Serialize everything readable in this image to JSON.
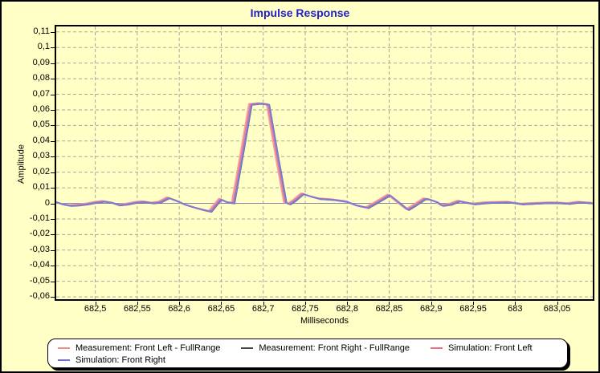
{
  "title": "Impulse Response",
  "colors": {
    "window_bg": "#FFFFC6",
    "title": "#2121C8",
    "grid": "#A9A79B",
    "zero_line": "#8A8AB4",
    "plot_border": "#000000"
  },
  "axes": {
    "x": {
      "label": "Milliseconds",
      "min": 682.4535,
      "max": 683.0925,
      "ticks": [
        {
          "value": 682.5,
          "label": "682,5"
        },
        {
          "value": 682.55,
          "label": "682,55"
        },
        {
          "value": 682.6,
          "label": "682,6"
        },
        {
          "value": 682.65,
          "label": "682,65"
        },
        {
          "value": 682.7,
          "label": "682,7"
        },
        {
          "value": 682.75,
          "label": "682,75"
        },
        {
          "value": 682.8,
          "label": "682,8"
        },
        {
          "value": 682.85,
          "label": "682,85"
        },
        {
          "value": 682.9,
          "label": "682,9"
        },
        {
          "value": 682.95,
          "label": "682,95"
        },
        {
          "value": 683.0,
          "label": "683"
        },
        {
          "value": 683.05,
          "label": "683,05"
        }
      ]
    },
    "y": {
      "label": "Amplitude",
      "min": -0.0615,
      "max": 0.1135,
      "ticks": [
        {
          "value": 0.11,
          "label": "0,11"
        },
        {
          "value": 0.1,
          "label": "0,1"
        },
        {
          "value": 0.09,
          "label": "0,09"
        },
        {
          "value": 0.08,
          "label": "0,08"
        },
        {
          "value": 0.07,
          "label": "0,07"
        },
        {
          "value": 0.06,
          "label": "0,06"
        },
        {
          "value": 0.05,
          "label": "0,05"
        },
        {
          "value": 0.04,
          "label": "0,04"
        },
        {
          "value": 0.03,
          "label": "0,03"
        },
        {
          "value": 0.02,
          "label": "0,02"
        },
        {
          "value": 0.01,
          "label": "0,01"
        },
        {
          "value": 0.0,
          "label": "0"
        },
        {
          "value": -0.01,
          "label": "-0,01"
        },
        {
          "value": -0.02,
          "label": "-0,02"
        },
        {
          "value": -0.03,
          "label": "-0,03"
        },
        {
          "value": -0.04,
          "label": "-0,04"
        },
        {
          "value": -0.05,
          "label": "-0,05"
        },
        {
          "value": -0.06,
          "label": "-0,06"
        }
      ]
    }
  },
  "chart_data": {
    "type": "line",
    "title": "Impulse Response",
    "xlabel": "Milliseconds",
    "ylabel": "Amplitude",
    "xlim": [
      682.4535,
      683.0925
    ],
    "ylim": [
      -0.0615,
      0.1135
    ],
    "grid": true,
    "legend_position": "bottom",
    "note": "Four nearly overlapping impulse-response traces; peak ~0.0639 at ~682.697 ms. Each series = base_samples with small time shift and amplitude offset.",
    "base_samples": [
      [
        682.4535,
        0.0008
      ],
      [
        682.461,
        -0.0006
      ],
      [
        682.471,
        -0.0016
      ],
      [
        682.481,
        -0.0013
      ],
      [
        682.491,
        -0.0006
      ],
      [
        682.501,
        0.0004
      ],
      [
        682.511,
        0.0011
      ],
      [
        682.521,
        0.0002
      ],
      [
        682.529,
        -0.0013
      ],
      [
        682.539,
        -0.0007
      ],
      [
        682.549,
        0.0004
      ],
      [
        682.559,
        0.0009
      ],
      [
        682.569,
        0.0
      ],
      [
        682.578,
        0.0006
      ],
      [
        682.588,
        0.0034
      ],
      [
        682.598,
        0.0014
      ],
      [
        682.608,
        -0.001
      ],
      [
        682.62,
        -0.003
      ],
      [
        682.63,
        -0.0044
      ],
      [
        682.638,
        -0.0054
      ],
      [
        682.65,
        0.0025
      ],
      [
        682.658,
        0.0005
      ],
      [
        682.6655,
        0.0
      ],
      [
        682.676,
        0.032
      ],
      [
        682.686,
        0.0633
      ],
      [
        682.697,
        0.0639
      ],
      [
        682.707,
        0.0633
      ],
      [
        682.717,
        0.032
      ],
      [
        682.7275,
        0.0003
      ],
      [
        682.732,
        -0.0006
      ],
      [
        682.738,
        0.0015
      ],
      [
        682.748,
        0.006
      ],
      [
        682.758,
        0.0042
      ],
      [
        682.768,
        0.0028
      ],
      [
        682.784,
        0.0022
      ],
      [
        682.8,
        0.001
      ],
      [
        682.812,
        -0.0015
      ],
      [
        682.825,
        -0.003
      ],
      [
        682.838,
        0.001
      ],
      [
        682.851,
        0.0052
      ],
      [
        682.862,
        0.0005
      ],
      [
        682.873,
        -0.0042
      ],
      [
        682.883,
        -0.001
      ],
      [
        682.893,
        0.0027
      ],
      [
        682.898,
        0.0025
      ],
      [
        682.908,
        0.0006
      ],
      [
        682.914,
        -0.0016
      ],
      [
        682.924,
        -0.0008
      ],
      [
        682.934,
        0.0013
      ],
      [
        682.944,
        0.0002
      ],
      [
        682.952,
        -0.0006
      ],
      [
        682.964,
        0.0001
      ],
      [
        682.974,
        0.0004
      ],
      [
        682.993,
        0.0006
      ],
      [
        683.009,
        -0.0006
      ],
      [
        683.025,
        -0.0002
      ],
      [
        683.042,
        0.0002
      ],
      [
        683.053,
        0.0001
      ],
      [
        683.065,
        -0.0003
      ],
      [
        683.077,
        0.0006
      ],
      [
        683.087,
        0.0002
      ],
      [
        683.0925,
        0.0
      ]
    ],
    "series": [
      {
        "name": "Measurement: Front Left - FullRange",
        "color": "#F4A3A3",
        "width": 2,
        "t_shift": -0.003,
        "amp_offset": 0.0005
      },
      {
        "name": "Measurement: Front Right - FullRange",
        "color": "#4A4A4A",
        "width": 1.5,
        "t_shift": 0.0005,
        "amp_offset": -0.0002
      },
      {
        "name": "Simulation: Front Left",
        "color": "#EE7E92",
        "width": 2,
        "t_shift": -0.0015,
        "amp_offset": 0.0003
      },
      {
        "name": "Simulation: Front Right",
        "color": "#7B7BD8",
        "width": 2,
        "t_shift": 0.0,
        "amp_offset": 0.0
      }
    ]
  },
  "legend": {
    "items": [
      {
        "label": "Measurement: Front Left - FullRange",
        "color": "#F08C8C"
      },
      {
        "label": "Measurement: Front Right - FullRange",
        "color": "#4A4A4A"
      },
      {
        "label": "Simulation: Front Left",
        "color": "#EE6E86"
      },
      {
        "label": "Simulation: Front Right",
        "color": "#7070CC"
      }
    ]
  }
}
